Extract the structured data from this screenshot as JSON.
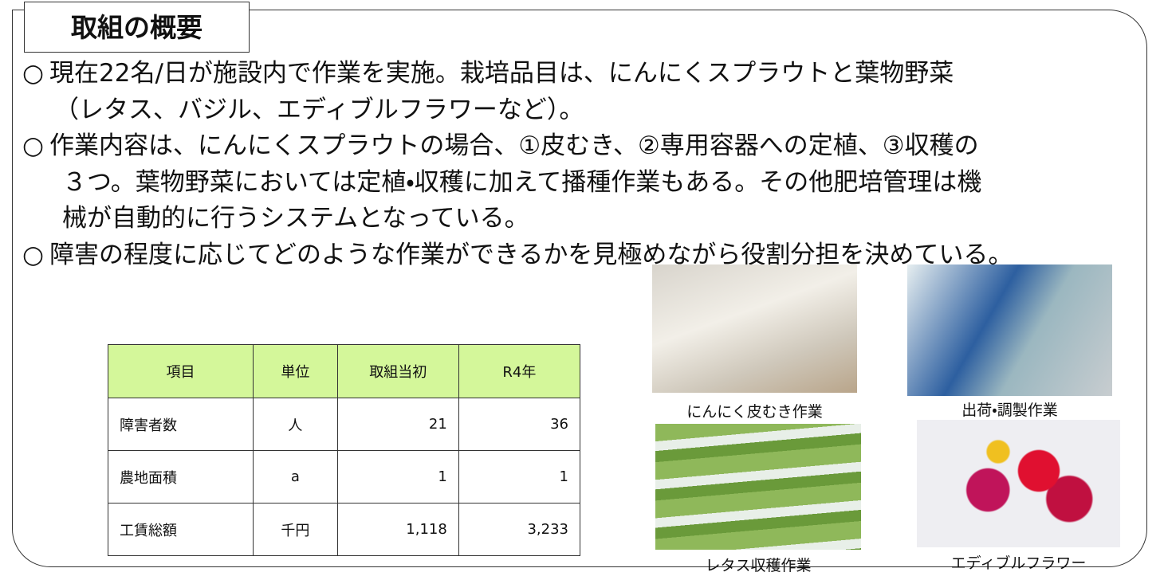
{
  "header": {
    "title": "取組の概要"
  },
  "bullets": [
    {
      "marker": "○",
      "lines": [
        "現在22名/日が施設内で作業を実施。栽培品目は、にんにくスプラウトと葉物野菜",
        "（レタス、バジル、エディブルフラワーなど）。"
      ]
    },
    {
      "marker": "○",
      "lines": [
        "作業内容は、にんにくスプラウトの場合、①皮むき、②専用容器への定植、③収穫の",
        "３つ。葉物野菜においては定植・収穫に加えて播種作業もある。その他肥培管理は機",
        "械が自動的に行うシステムとなっている。"
      ]
    },
    {
      "marker": "○",
      "lines": [
        "障害の程度に応じてどのような作業ができるかを見極めながら役割分担を決めている。"
      ]
    }
  ],
  "table": {
    "header": [
      "項目",
      "単位",
      "取組当初",
      "R4年"
    ],
    "rows": [
      [
        "障害者数",
        "人",
        "21",
        "36"
      ],
      [
        "農地面積",
        "a",
        "1",
        "1"
      ],
      [
        "工賃総額",
        "千円",
        "1,118",
        "3,233"
      ]
    ]
  },
  "photos": [
    {
      "caption": "にんにく皮むき作業"
    },
    {
      "caption": "出荷・調製作業"
    },
    {
      "caption": "レタス収穫作業"
    },
    {
      "caption": "エディブルフラワー"
    }
  ]
}
